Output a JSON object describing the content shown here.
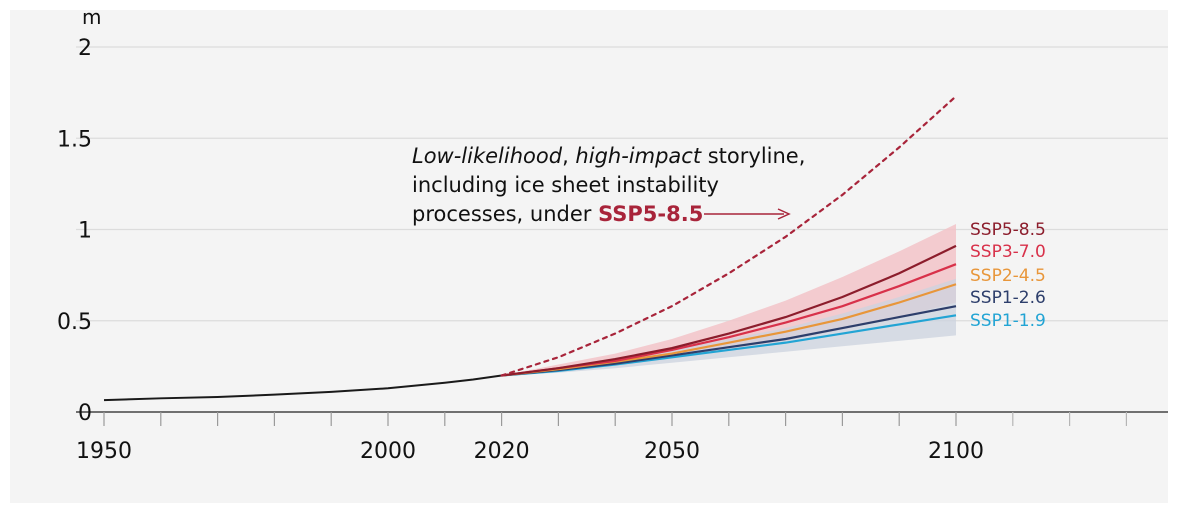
{
  "chart_data": {
    "type": "line",
    "title": "",
    "xlabel": "",
    "ylabel": "m",
    "xlim": [
      1950,
      2100
    ],
    "ylim": [
      0,
      2
    ],
    "x_tick_labels": [
      1950,
      2000,
      2020,
      2050,
      2100
    ],
    "x_minor_ticks": [
      1950,
      1960,
      1970,
      1980,
      1990,
      2000,
      2010,
      2020,
      2030,
      2040,
      2050,
      2060,
      2070,
      2080,
      2090,
      2100
    ],
    "y_ticks": [
      0,
      0.5,
      1,
      1.5,
      2
    ],
    "y_tick_labels": [
      "0",
      "0.5",
      "1",
      "1.5",
      "2"
    ],
    "grid": true,
    "colors": {
      "background": "#f4f4f4",
      "grid": "#dcdcdc",
      "axis": "#444444",
      "historical": "#1a1a1a",
      "storyline": "#a8243a",
      "band_high": "#f2c3c8",
      "band_low": "#ccd3df"
    },
    "historical": {
      "x": [
        1950,
        1960,
        1970,
        1980,
        1990,
        2000,
        2005,
        2010,
        2015,
        2020
      ],
      "y": [
        0.065,
        0.075,
        0.082,
        0.095,
        0.11,
        0.13,
        0.145,
        0.16,
        0.178,
        0.2
      ]
    },
    "series": [
      {
        "name": "SSP5-8.5",
        "color": "#8c1d2c",
        "x": [
          2020,
          2030,
          2040,
          2050,
          2060,
          2070,
          2080,
          2090,
          2100
        ],
        "y": [
          0.2,
          0.24,
          0.29,
          0.35,
          0.43,
          0.52,
          0.63,
          0.76,
          0.91
        ]
      },
      {
        "name": "SSP3-7.0",
        "color": "#d8314a",
        "x": [
          2020,
          2030,
          2040,
          2050,
          2060,
          2070,
          2080,
          2090,
          2100
        ],
        "y": [
          0.2,
          0.24,
          0.28,
          0.34,
          0.41,
          0.49,
          0.58,
          0.69,
          0.81
        ]
      },
      {
        "name": "SSP2-4.5",
        "color": "#e8963a",
        "x": [
          2020,
          2030,
          2040,
          2050,
          2060,
          2070,
          2080,
          2090,
          2100
        ],
        "y": [
          0.2,
          0.235,
          0.275,
          0.32,
          0.38,
          0.44,
          0.51,
          0.6,
          0.7
        ]
      },
      {
        "name": "SSP1-2.6",
        "color": "#2d3e6b",
        "x": [
          2020,
          2030,
          2040,
          2050,
          2060,
          2070,
          2080,
          2090,
          2100
        ],
        "y": [
          0.2,
          0.23,
          0.265,
          0.31,
          0.355,
          0.4,
          0.46,
          0.52,
          0.58
        ]
      },
      {
        "name": "SSP1-1.9",
        "color": "#22a4d4",
        "x": [
          2020,
          2030,
          2040,
          2050,
          2060,
          2070,
          2080,
          2090,
          2100
        ],
        "y": [
          0.2,
          0.225,
          0.26,
          0.3,
          0.34,
          0.38,
          0.43,
          0.48,
          0.53
        ]
      }
    ],
    "bands": [
      {
        "name": "high",
        "color": "#f2c3c8",
        "x": [
          2020,
          2030,
          2040,
          2050,
          2060,
          2070,
          2080,
          2090,
          2100
        ],
        "lower": [
          0.2,
          0.23,
          0.26,
          0.3,
          0.34,
          0.39,
          0.45,
          0.52,
          0.6
        ],
        "upper": [
          0.2,
          0.26,
          0.32,
          0.4,
          0.5,
          0.61,
          0.74,
          0.88,
          1.03
        ]
      },
      {
        "name": "low",
        "color": "#ccd3df",
        "x": [
          2020,
          2030,
          2040,
          2050,
          2060,
          2070,
          2080,
          2090,
          2100
        ],
        "lower": [
          0.2,
          0.215,
          0.24,
          0.27,
          0.3,
          0.33,
          0.36,
          0.39,
          0.42
        ],
        "upper": [
          0.2,
          0.24,
          0.29,
          0.34,
          0.4,
          0.46,
          0.54,
          0.63,
          0.73
        ]
      }
    ],
    "storyline": {
      "name": "SSP5-8.5",
      "style": "dotted",
      "x": [
        2020,
        2030,
        2040,
        2050,
        2060,
        2070,
        2080,
        2090,
        2100
      ],
      "y": [
        0.2,
        0.3,
        0.43,
        0.58,
        0.76,
        0.96,
        1.19,
        1.45,
        1.73
      ]
    },
    "annotation": {
      "line1_italic": "Low-likelihood",
      "line1_sep": ", ",
      "line1_italic2": "high-impact",
      "line1_rest": " storyline,",
      "line2": "including ice sheet instability",
      "line3_prefix": "processes, under ",
      "line3_highlight": "SSP5-8.5",
      "arrow": "→"
    }
  }
}
